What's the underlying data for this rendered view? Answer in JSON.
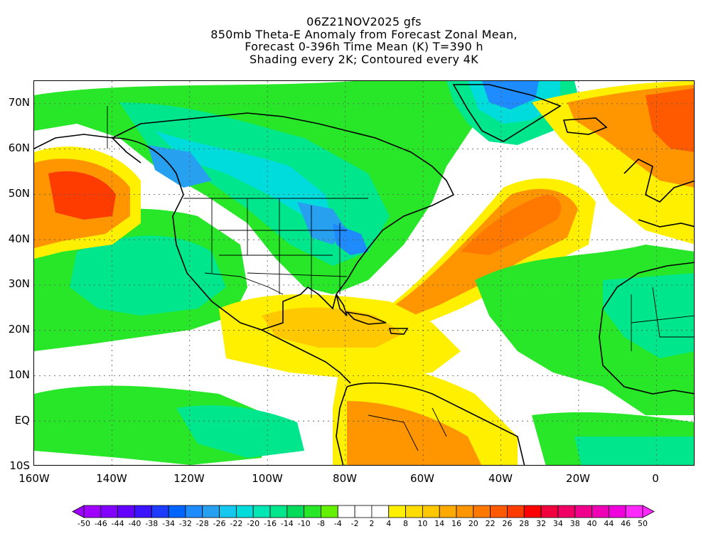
{
  "title": {
    "lines": [
      "06Z21NOV2025 gfs",
      "850mb Theta-E Anomaly from Forecast Zonal Mean,",
      "Forecast 0-396h Time Mean (K) T=390 h",
      "Shading every 2K; Contoured every 4K"
    ]
  },
  "axes": {
    "lat_labels": [
      "70N",
      "60N",
      "50N",
      "40N",
      "30N",
      "20N",
      "10N",
      "EQ",
      "10S"
    ],
    "lon_labels": [
      "160W",
      "140W",
      "120W",
      "100W",
      "80W",
      "60W",
      "40W",
      "20W",
      "0"
    ]
  },
  "colorbar": {
    "labels": [
      "-50",
      "-46",
      "-44",
      "-40",
      "-38",
      "-34",
      "-32",
      "-28",
      "-26",
      "-22",
      "-20",
      "-16",
      "-14",
      "-10",
      "-8",
      "-4",
      "-2",
      "2",
      "4",
      "8",
      "10",
      "14",
      "16",
      "20",
      "22",
      "26",
      "28",
      "32",
      "34",
      "38",
      "40",
      "44",
      "46",
      "50"
    ],
    "colors": [
      "#a000ff",
      "#8200ff",
      "#6400ff",
      "#3c14ff",
      "#1e3cff",
      "#0064ff",
      "#1e8cff",
      "#28a0f0",
      "#14c8f0",
      "#00dcdc",
      "#00e6b4",
      "#00e68c",
      "#00dc5a",
      "#28e628",
      "#64f000",
      "#ffffff",
      "#ffffff",
      "#ffffff",
      "#fff000",
      "#ffdc00",
      "#ffc800",
      "#ffaa00",
      "#ff9600",
      "#ff7800",
      "#ff5a00",
      "#ff3c00",
      "#ff0000",
      "#f0003c",
      "#f00064",
      "#f0008c",
      "#f000b4",
      "#f000dc",
      "#ff28ff"
    ]
  },
  "map": {
    "projection": "cylindrical",
    "lon_range": [
      -160,
      10
    ],
    "lat_range": [
      -10,
      75
    ],
    "palette": {
      "white": "#ffffff",
      "light_green": "#64f000",
      "green": "#28e628",
      "mint": "#00e68c",
      "cyan": "#00dcdc",
      "sky": "#28a0f0",
      "blue": "#1e8cff",
      "yellow": "#fff000",
      "gold": "#ffc800",
      "orange": "#ff9600",
      "dark_orange": "#ff7800",
      "red": "#ff3c00"
    }
  }
}
